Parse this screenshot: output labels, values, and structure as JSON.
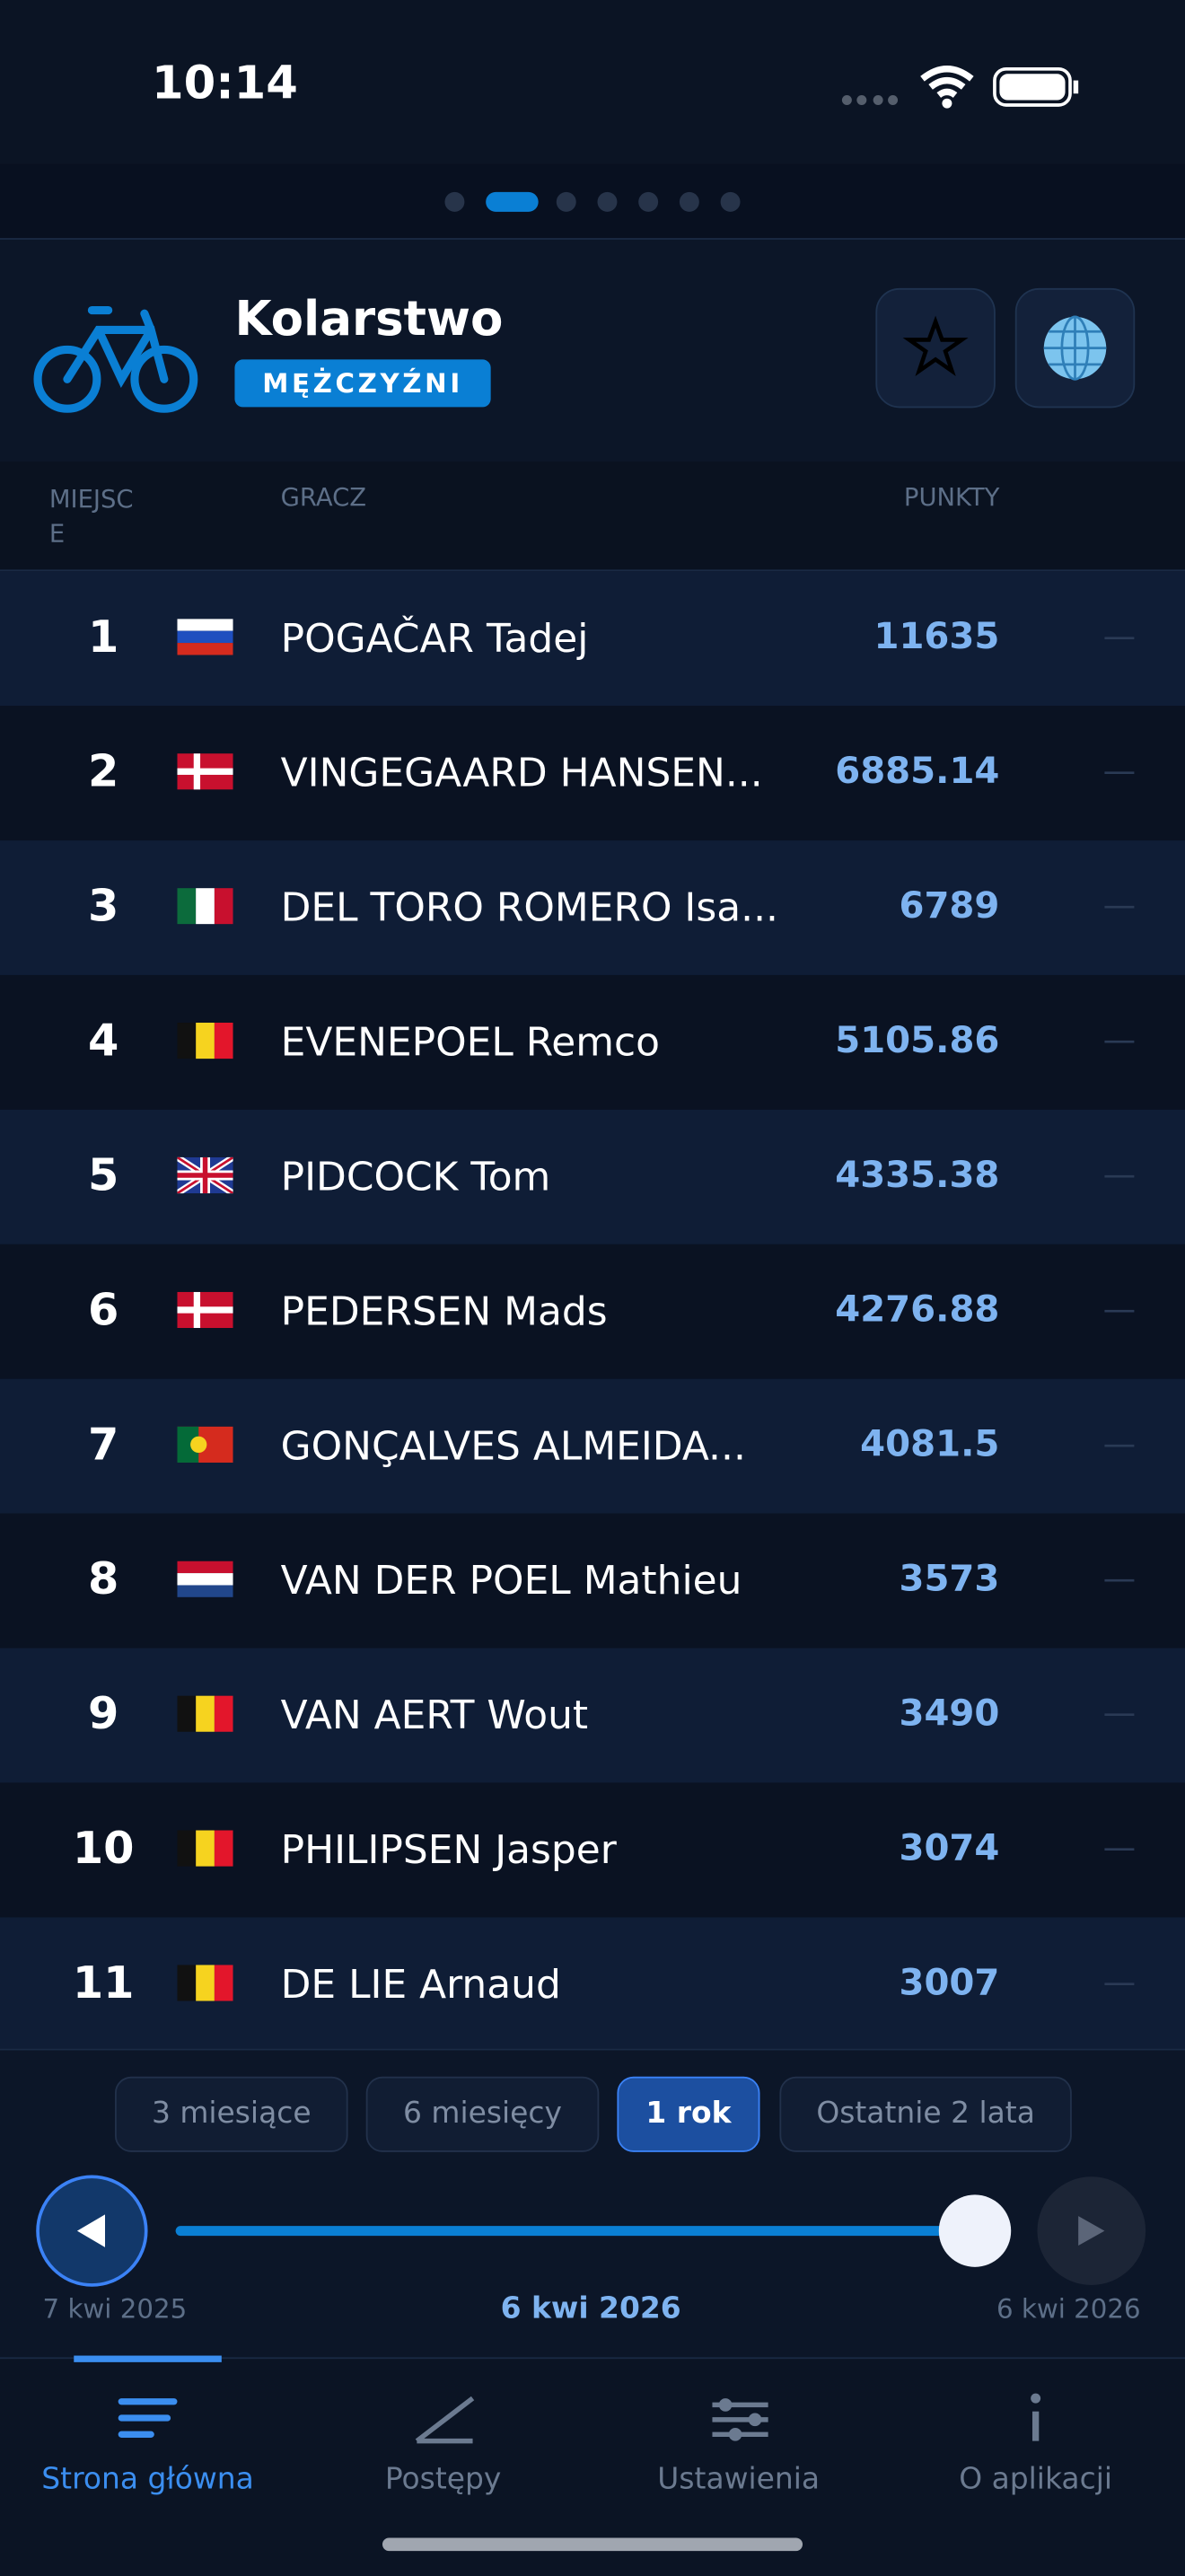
{
  "status_bar": {
    "time": "10:14"
  },
  "header": {
    "title": "Kolarstwo",
    "badge": "MĘŻCZYŹNI"
  },
  "table": {
    "columns": [
      "MIEJSCE",
      "GRACZ",
      "PUNKTY"
    ],
    "rows": [
      {
        "rank": "1",
        "name": "POGAČAR Tadej",
        "points": "11635",
        "trend": "—"
      },
      {
        "rank": "2",
        "name": "VINGEGAARD HANSEN...",
        "points": "6885.14",
        "trend": "—"
      },
      {
        "rank": "3",
        "name": "DEL TORO ROMERO Isa...",
        "points": "6789",
        "trend": "—"
      },
      {
        "rank": "4",
        "name": "EVENEPOEL Remco",
        "points": "5105.86",
        "trend": "—"
      },
      {
        "rank": "5",
        "name": "PIDCOCK Tom",
        "points": "4335.38",
        "trend": "—"
      },
      {
        "rank": "6",
        "name": "PEDERSEN Mads",
        "points": "4276.88",
        "trend": "—"
      },
      {
        "rank": "7",
        "name": "GONÇALVES ALMEIDA...",
        "points": "4081.5",
        "trend": "—"
      },
      {
        "rank": "8",
        "name": "VAN DER POEL Mathieu",
        "points": "3573",
        "trend": "—"
      },
      {
        "rank": "9",
        "name": "VAN AERT Wout",
        "points": "3490",
        "trend": "—"
      },
      {
        "rank": "10",
        "name": "PHILIPSEN Jasper",
        "points": "3074",
        "trend": "—"
      },
      {
        "rank": "11",
        "name": "DE LIE Arnaud",
        "points": "3007",
        "trend": "—"
      }
    ]
  },
  "periods": [
    "3 miesiące",
    "6 miesięcy",
    "1 rok",
    "Ostatnie 2 lata"
  ],
  "slider": {
    "start": "7 kwi 2025",
    "current": "6 kwi 2026",
    "end": "6 kwi 2026"
  },
  "tabs": [
    "Strona główna",
    "Postępy",
    "Ustawienia",
    "O aplikacji"
  ]
}
